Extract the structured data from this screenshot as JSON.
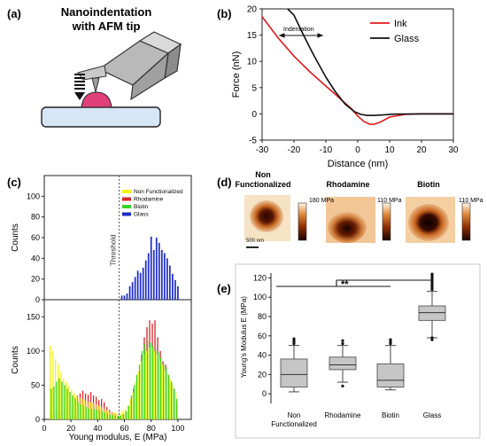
{
  "panels": {
    "a": {
      "letter": "(a)",
      "title_line1": "Nanoindentation",
      "title_line2": "with AFM tip"
    },
    "b": {
      "letter": "(b)",
      "annotation": "Indentation"
    },
    "c": {
      "letter": "(c)",
      "threshold_label": "Threshold"
    },
    "d": {
      "letter": "(d)",
      "titles": [
        "Non\nFunctionalized",
        "Rhodamine",
        "Biotin"
      ],
      "title_nf_1": "Non",
      "title_nf_2": "Functionalized",
      "title_rh": "Rhodamine",
      "title_bi": "Biotin",
      "scale_labels": [
        "180 MPa",
        "110 MPa",
        "110 MPa"
      ],
      "scale_nf": "180 MPa",
      "scale_rh": "110 MPa",
      "scale_bi": "110 MPa",
      "scalebar_label": "500 nm"
    },
    "e": {
      "letter": "(e)",
      "significance": "**"
    }
  },
  "colors": {
    "ink": "#e41a1c",
    "glass": "#111111",
    "non_functionalized": "#f2f21a",
    "rhodamine": "#d8262c",
    "biotin": "#37d42a",
    "glass_hist": "#1f2cc4",
    "box_fill": "#c6c6c6"
  },
  "chart_data": [
    {
      "id": "b",
      "type": "line",
      "xlabel": "Distance (nm)",
      "ylabel": "Force (nN)",
      "xlim": [
        -30,
        30
      ],
      "ylim": [
        -5,
        20
      ],
      "xticks": [
        -30,
        -20,
        -10,
        0,
        10,
        20,
        30
      ],
      "yticks": [
        -5,
        0,
        5,
        10,
        15,
        20
      ],
      "legend_position": "top-right",
      "series": [
        {
          "name": "Ink",
          "x": [
            -30,
            -25,
            -20,
            -15,
            -10,
            -5,
            -2,
            0,
            2,
            4,
            5,
            7,
            10,
            15,
            20,
            30
          ],
          "y": [
            18.5,
            14.5,
            11.0,
            8.0,
            5.3,
            2.6,
            1.0,
            -0.4,
            -1.5,
            -2.0,
            -2.0,
            -1.6,
            -0.6,
            -0.1,
            0,
            0
          ]
        },
        {
          "name": "Glass",
          "x": [
            -22,
            -20,
            -17,
            -14,
            -10,
            -7,
            -4,
            -1,
            1,
            3,
            5,
            8,
            12,
            20,
            30
          ],
          "y": [
            20.5,
            18.8,
            15.0,
            11.4,
            7.0,
            4.2,
            1.9,
            0.4,
            -0.1,
            -0.3,
            -0.3,
            -0.2,
            -0.05,
            0,
            0
          ]
        }
      ]
    },
    {
      "id": "c_top",
      "type": "bar",
      "xlabel": "",
      "ylabel": "Counts",
      "xlim": [
        0,
        110
      ],
      "ylim": [
        0,
        120
      ],
      "yticks": [
        0,
        20,
        40,
        60,
        80,
        100
      ],
      "threshold": 56,
      "legend_position": "top-right",
      "legend": [
        "Non Functionalized",
        "Rhodamine",
        "Biotin",
        "Glass"
      ],
      "series": [
        {
          "name": "Glass",
          "x": [
            58,
            60,
            62,
            64,
            66,
            68,
            70,
            72,
            74,
            76,
            78,
            80,
            82,
            84,
            86,
            88,
            90,
            92,
            94,
            96,
            98,
            100
          ],
          "values": [
            4,
            4,
            6,
            13,
            17,
            22,
            28,
            26,
            31,
            38,
            45,
            61,
            48,
            60,
            55,
            48,
            45,
            40,
            33,
            25,
            19,
            13
          ]
        }
      ]
    },
    {
      "id": "c_bottom",
      "type": "bar",
      "xlabel": "Young modulus, E (MPa)",
      "ylabel": "Counts",
      "xlim": [
        0,
        110
      ],
      "ylim": [
        0,
        175
      ],
      "xticks": [
        0,
        20,
        40,
        60,
        80,
        100
      ],
      "yticks": [
        0,
        50,
        100,
        150
      ],
      "threshold": 56,
      "series": [
        {
          "name": "Non Functionalized",
          "x": [
            5,
            7,
            9,
            11,
            13,
            15,
            17,
            19,
            21,
            23,
            25,
            27,
            29,
            31,
            33,
            35,
            37,
            39,
            41,
            43,
            45,
            47,
            49,
            51,
            53,
            55,
            57,
            59,
            61,
            63,
            65,
            67,
            69,
            71,
            73,
            75,
            77,
            79,
            81,
            83,
            85,
            87,
            89,
            91,
            93,
            95,
            97,
            99
          ],
          "values": [
            108,
            100,
            88,
            80,
            70,
            60,
            55,
            50,
            43,
            38,
            35,
            32,
            30,
            28,
            26,
            25,
            24,
            22,
            20,
            18,
            16,
            14,
            12,
            11,
            10,
            10,
            10,
            12,
            15,
            20,
            30,
            40,
            55,
            70,
            85,
            95,
            100,
            105,
            105,
            100,
            95,
            88,
            80,
            72,
            65,
            58,
            50,
            40
          ]
        },
        {
          "name": "Rhodamine",
          "x": [
            5,
            7,
            9,
            11,
            13,
            15,
            17,
            19,
            21,
            23,
            25,
            27,
            29,
            31,
            33,
            35,
            37,
            39,
            41,
            43,
            45,
            47,
            49,
            51,
            53,
            55,
            57,
            59,
            61,
            63,
            65,
            67,
            69,
            71,
            73,
            75,
            77,
            79,
            81,
            83,
            85,
            87,
            89,
            91,
            93,
            95,
            97,
            99
          ],
          "values": [
            8,
            6,
            10,
            8,
            12,
            18,
            22,
            25,
            28,
            32,
            35,
            38,
            42,
            38,
            36,
            40,
            35,
            33,
            28,
            30,
            25,
            18,
            14,
            10,
            8,
            6,
            5,
            8,
            10,
            15,
            30,
            45,
            55,
            70,
            95,
            120,
            135,
            145,
            140,
            145,
            120,
            100,
            85,
            80,
            65,
            55,
            45,
            25
          ]
        },
        {
          "name": "Biotin",
          "x": [
            5,
            7,
            9,
            11,
            13,
            15,
            17,
            19,
            21,
            23,
            25,
            27,
            29,
            31,
            33,
            35,
            37,
            39,
            41,
            43,
            45,
            47,
            49,
            51,
            53,
            55,
            57,
            59,
            61,
            63,
            65,
            67,
            69,
            71,
            73,
            75,
            77,
            79,
            81,
            83,
            85,
            87,
            89,
            91,
            93,
            95,
            97,
            99
          ],
          "values": [
            45,
            48,
            55,
            60,
            55,
            50,
            45,
            40,
            35,
            30,
            25,
            22,
            20,
            18,
            16,
            15,
            15,
            14,
            13,
            12,
            10,
            8,
            7,
            6,
            5,
            5,
            6,
            8,
            12,
            20,
            35,
            50,
            65,
            80,
            100,
            110,
            115,
            112,
            108,
            103,
            98,
            90,
            82,
            75,
            65,
            55,
            45,
            30
          ]
        }
      ]
    },
    {
      "id": "e",
      "type": "box",
      "ylabel": "Young's Modulus E (MPa)",
      "ylim": [
        -10,
        125
      ],
      "yticks": [
        0,
        20,
        40,
        60,
        80,
        100,
        120
      ],
      "categories": [
        "Non\nFunctionalized",
        "Rhodamine",
        "Biotin",
        "Glass"
      ],
      "category_lines": [
        [
          "Non",
          "Functionalized"
        ],
        [
          "Rhodamine"
        ],
        [
          "Biotin"
        ],
        [
          "Glass"
        ]
      ],
      "boxes": [
        {
          "whisker_low": 2,
          "q1": 7,
          "median": 20,
          "q3": 36,
          "whisker_high": 50,
          "outliers": [
            52,
            54,
            55,
            57
          ]
        },
        {
          "whisker_low": 12,
          "q1": 25,
          "median": 30,
          "q3": 38,
          "whisker_high": 50,
          "outliers": [
            52,
            55,
            8
          ]
        },
        {
          "whisker_low": 4,
          "q1": 7,
          "median": 14,
          "q3": 31,
          "whisker_high": 50,
          "outliers": [
            52,
            54,
            56
          ]
        },
        {
          "whisker_low": 58,
          "q1": 76,
          "median": 84,
          "q3": 91,
          "whisker_high": 106,
          "outliers": [
            108,
            110,
            112,
            114,
            116,
            118,
            120,
            122,
            124,
            56,
            58
          ]
        }
      ]
    }
  ]
}
